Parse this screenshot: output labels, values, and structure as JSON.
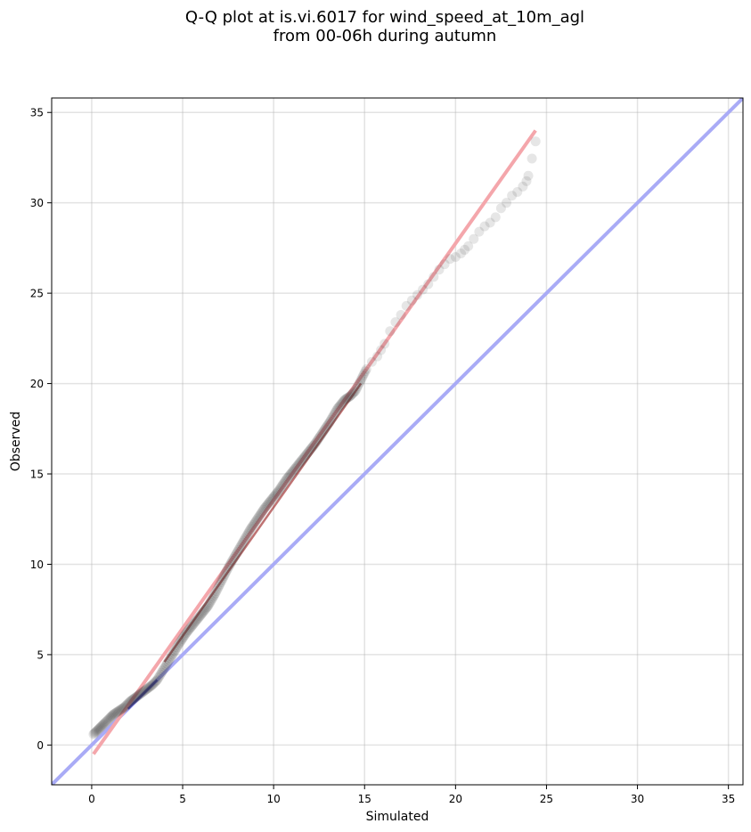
{
  "chart_data": {
    "type": "scatter",
    "title": "Q-Q plot at is.vi.6017 for wind_speed_at_10m_agl\nfrom 00-06h during autumn",
    "xlabel": "Simulated",
    "ylabel": "Observed",
    "xlim": [
      -2.2,
      35.8
    ],
    "ylim": [
      -2.2,
      35.8
    ],
    "xticks": [
      0,
      5,
      10,
      15,
      20,
      25,
      30,
      35
    ],
    "yticks": [
      0,
      5,
      10,
      15,
      20,
      25,
      30,
      35
    ],
    "grid": true,
    "legend": "none",
    "colors": {
      "points": "#333333",
      "fit_line": "#f4a6ab",
      "identity_line": "#a9abf6",
      "dense_fit": "#8b0000",
      "dense_identity": "#00008b"
    },
    "quantiles": {
      "x": [
        0.1,
        0.3,
        0.5,
        0.7,
        1.0,
        1.2,
        1.5,
        1.8,
        2.1,
        2.5,
        2.9,
        3.3,
        3.6,
        3.9,
        4.2,
        4.5,
        4.8,
        5.2,
        5.6,
        6.0,
        6.4,
        6.8,
        7.1,
        7.5,
        7.9,
        8.3,
        8.7,
        9.1,
        9.5,
        9.9,
        10.3,
        10.7,
        11.1,
        11.5,
        11.9,
        12.3,
        12.7,
        13.1,
        13.5,
        13.9,
        14.2,
        14.5,
        14.8,
        15.1,
        15.4,
        15.7,
        16.1,
        16.4,
        16.7,
        17.0,
        17.3,
        17.6,
        17.9,
        18.2,
        18.5,
        18.8,
        19.1,
        19.4,
        19.7,
        20.0,
        20.3,
        20.7,
        21.0,
        21.3,
        21.6,
        21.9,
        22.2,
        22.5,
        22.8,
        23.1,
        23.4,
        23.7,
        23.9,
        24.0,
        24.4
      ],
      "y": [
        0.6,
        0.8,
        1.0,
        1.2,
        1.5,
        1.7,
        1.9,
        2.1,
        2.4,
        2.7,
        3.0,
        3.3,
        3.6,
        4.1,
        4.6,
        5.1,
        5.6,
        6.2,
        6.7,
        7.2,
        7.7,
        8.4,
        9.0,
        9.8,
        10.5,
        11.2,
        11.9,
        12.5,
        13.1,
        13.6,
        14.1,
        14.7,
        15.2,
        15.7,
        16.2,
        16.7,
        17.3,
        17.9,
        18.6,
        19.1,
        19.3,
        19.6,
        20.2,
        20.8,
        21.2,
        21.5,
        22.2,
        22.9,
        23.4,
        23.8,
        24.3,
        24.6,
        24.9,
        25.2,
        25.5,
        25.9,
        26.3,
        26.6,
        26.9,
        27.0,
        27.2,
        27.6,
        28.0,
        28.4,
        28.7,
        28.9,
        29.2,
        29.7,
        30.0,
        30.4,
        30.6,
        30.9,
        31.2,
        31.5,
        33.4
      ]
    },
    "fit_line": {
      "x": [
        0.1,
        24.4
      ],
      "y": [
        -0.5,
        34.0
      ]
    },
    "identity_line": {
      "x": [
        -2.2,
        35.8
      ],
      "y": [
        -2.2,
        35.8
      ]
    }
  }
}
